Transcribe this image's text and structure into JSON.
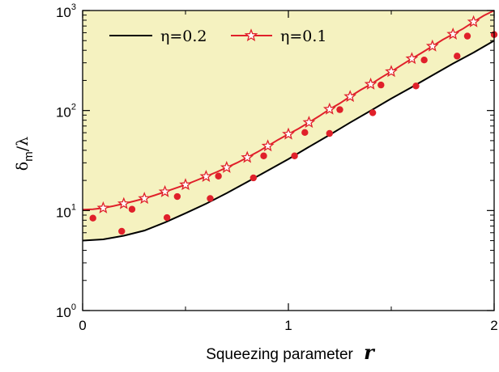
{
  "chart_data": {
    "type": "line",
    "xlabel": "Squeezing parameter",
    "xlabel_symbol": "r",
    "ylabel_main": "δ",
    "ylabel_sub": "m",
    "ylabel_rest": "/λ",
    "x_range": [
      0,
      2
    ],
    "y_range": [
      1,
      1000
    ],
    "y_scale": "log",
    "x_ticks": [
      {
        "value": 0,
        "label": "0"
      },
      {
        "value": 1,
        "label": "1"
      },
      {
        "value": 2,
        "label": "2"
      }
    ],
    "y_ticks": [
      {
        "value": 1,
        "base": "10",
        "exp": "0"
      },
      {
        "value": 10,
        "base": "10",
        "exp": "1"
      },
      {
        "value": 100,
        "base": "10",
        "exp": "2"
      },
      {
        "value": 1000,
        "base": "10",
        "exp": "3"
      }
    ],
    "shaded_region_color": "#f5f2c0",
    "legend_position": "top-left",
    "series": [
      {
        "name": "η=0.2",
        "color": "#000000",
        "style": "line",
        "x": [
          0,
          0.1,
          0.2,
          0.3,
          0.4,
          0.5,
          0.6,
          0.7,
          0.8,
          0.9,
          1.0,
          1.1,
          1.2,
          1.3,
          1.4,
          1.5,
          1.6,
          1.7,
          1.8,
          1.9,
          2.0
        ],
        "y": [
          5.0,
          5.15,
          5.6,
          6.3,
          7.6,
          9.4,
          11.7,
          14.9,
          19.3,
          25.1,
          32.7,
          43.3,
          57.0,
          75.8,
          99.7,
          131.8,
          171.5,
          225.0,
          295.0,
          380.0,
          500.0
        ]
      },
      {
        "name": "η=0.1",
        "color": "#e0202a",
        "style": "line+star",
        "x": [
          0,
          0.05,
          0.1,
          0.15,
          0.2,
          0.25,
          0.3,
          0.35,
          0.4,
          0.45,
          0.5,
          0.55,
          0.6,
          0.65,
          0.7,
          0.75,
          0.8,
          0.85,
          0.9,
          0.95,
          1.0,
          1.05,
          1.1,
          1.15,
          1.2,
          1.25,
          1.3,
          1.35,
          1.4,
          1.45,
          1.5,
          1.55,
          1.6,
          1.65,
          1.7,
          1.75,
          1.8,
          1.85,
          1.9,
          1.95,
          2.0
        ],
        "y": [
          10.2,
          10.3,
          10.6,
          11.1,
          11.7,
          12.4,
          13.2,
          14.2,
          15.4,
          16.7,
          18.1,
          19.9,
          21.9,
          24.2,
          26.9,
          30.0,
          33.9,
          38.5,
          44.2,
          51.0,
          58.0,
          66.0,
          76.0,
          88.0,
          103.0,
          118.0,
          138.0,
          160.0,
          183.0,
          213.0,
          245.0,
          285.0,
          330.0,
          380.0,
          440.0,
          510.0,
          580.0,
          660.0,
          770.0,
          890.0,
          1000.0
        ]
      },
      {
        "name": "dots",
        "color": "#e0202a",
        "style": "dots",
        "x": [
          0.05,
          0.19,
          0.24,
          0.41,
          0.46,
          0.62,
          0.66,
          0.83,
          0.88,
          1.03,
          1.08,
          1.2,
          1.25,
          1.41,
          1.45,
          1.62,
          1.66,
          1.82,
          1.87,
          2.0
        ],
        "y": [
          8.4,
          6.2,
          10.3,
          8.5,
          13.8,
          13.2,
          22.1,
          21.2,
          35.2,
          35.2,
          60.3,
          59.0,
          102.0,
          95.0,
          180.0,
          176.0,
          320.0,
          350.0,
          555.0,
          575.0
        ]
      }
    ]
  }
}
